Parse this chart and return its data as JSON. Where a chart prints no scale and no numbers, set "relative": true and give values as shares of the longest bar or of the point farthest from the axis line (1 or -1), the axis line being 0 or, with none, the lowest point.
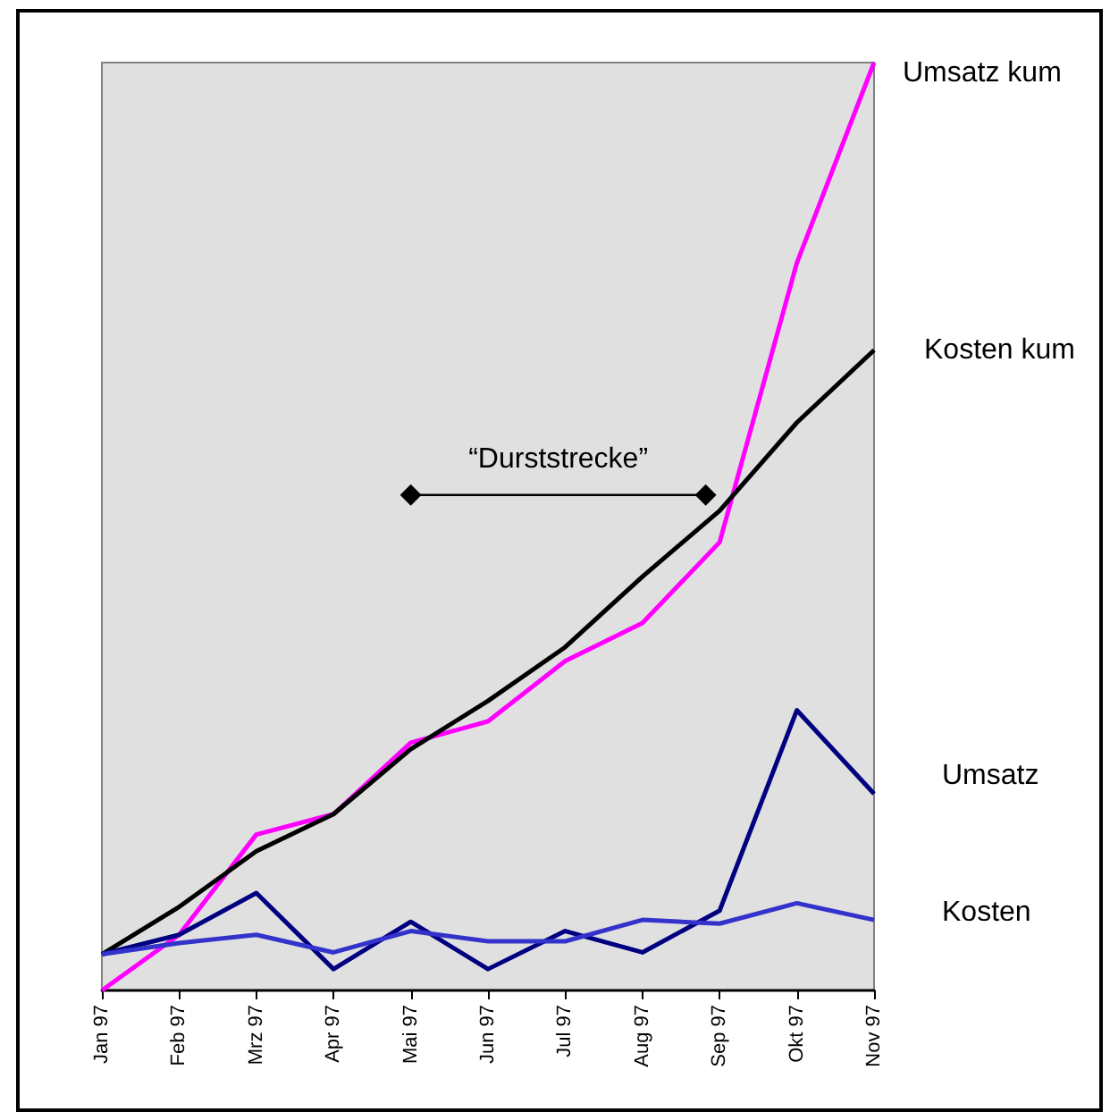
{
  "chart_data": {
    "type": "line",
    "relative": true,
    "legend": false,
    "grid": false,
    "line_style": "solid",
    "categories": [
      "Jan 97",
      "Feb 97",
      "Mrz 97",
      "Apr 97",
      "Mai 97",
      "Jun 97",
      "Jul 97",
      "Aug 97",
      "Sep 97",
      "Okt 97",
      "Nov 97"
    ],
    "series": [
      {
        "name": "Umsatz kum",
        "color": "#ff00ff",
        "values": [
          0,
          0.06,
          0.168,
          0.19,
          0.267,
          0.29,
          0.355,
          0.396,
          0.483,
          0.784,
          1
        ]
      },
      {
        "name": "Kosten kum",
        "color": "#000000",
        "values": [
          0.039,
          0.09,
          0.15,
          0.19,
          0.26,
          0.312,
          0.37,
          0.446,
          0.517,
          0.612,
          0.69
        ]
      },
      {
        "name": "Umsatz",
        "color": "#000080",
        "values": [
          0.039,
          0.06,
          0.105,
          0.023,
          0.074,
          0.023,
          0.064,
          0.041,
          0.086,
          0.302,
          0.212
        ]
      },
      {
        "name": "Kosten",
        "color": "#3333cc",
        "values": [
          0.039,
          0.051,
          0.06,
          0.041,
          0.064,
          0.053,
          0.053,
          0.076,
          0.072,
          0.094,
          0.076
        ]
      }
    ],
    "annotations": [
      {
        "text": "“Durststrecke”",
        "x": "Mai 97",
        "y": 0.534
      }
    ]
  }
}
